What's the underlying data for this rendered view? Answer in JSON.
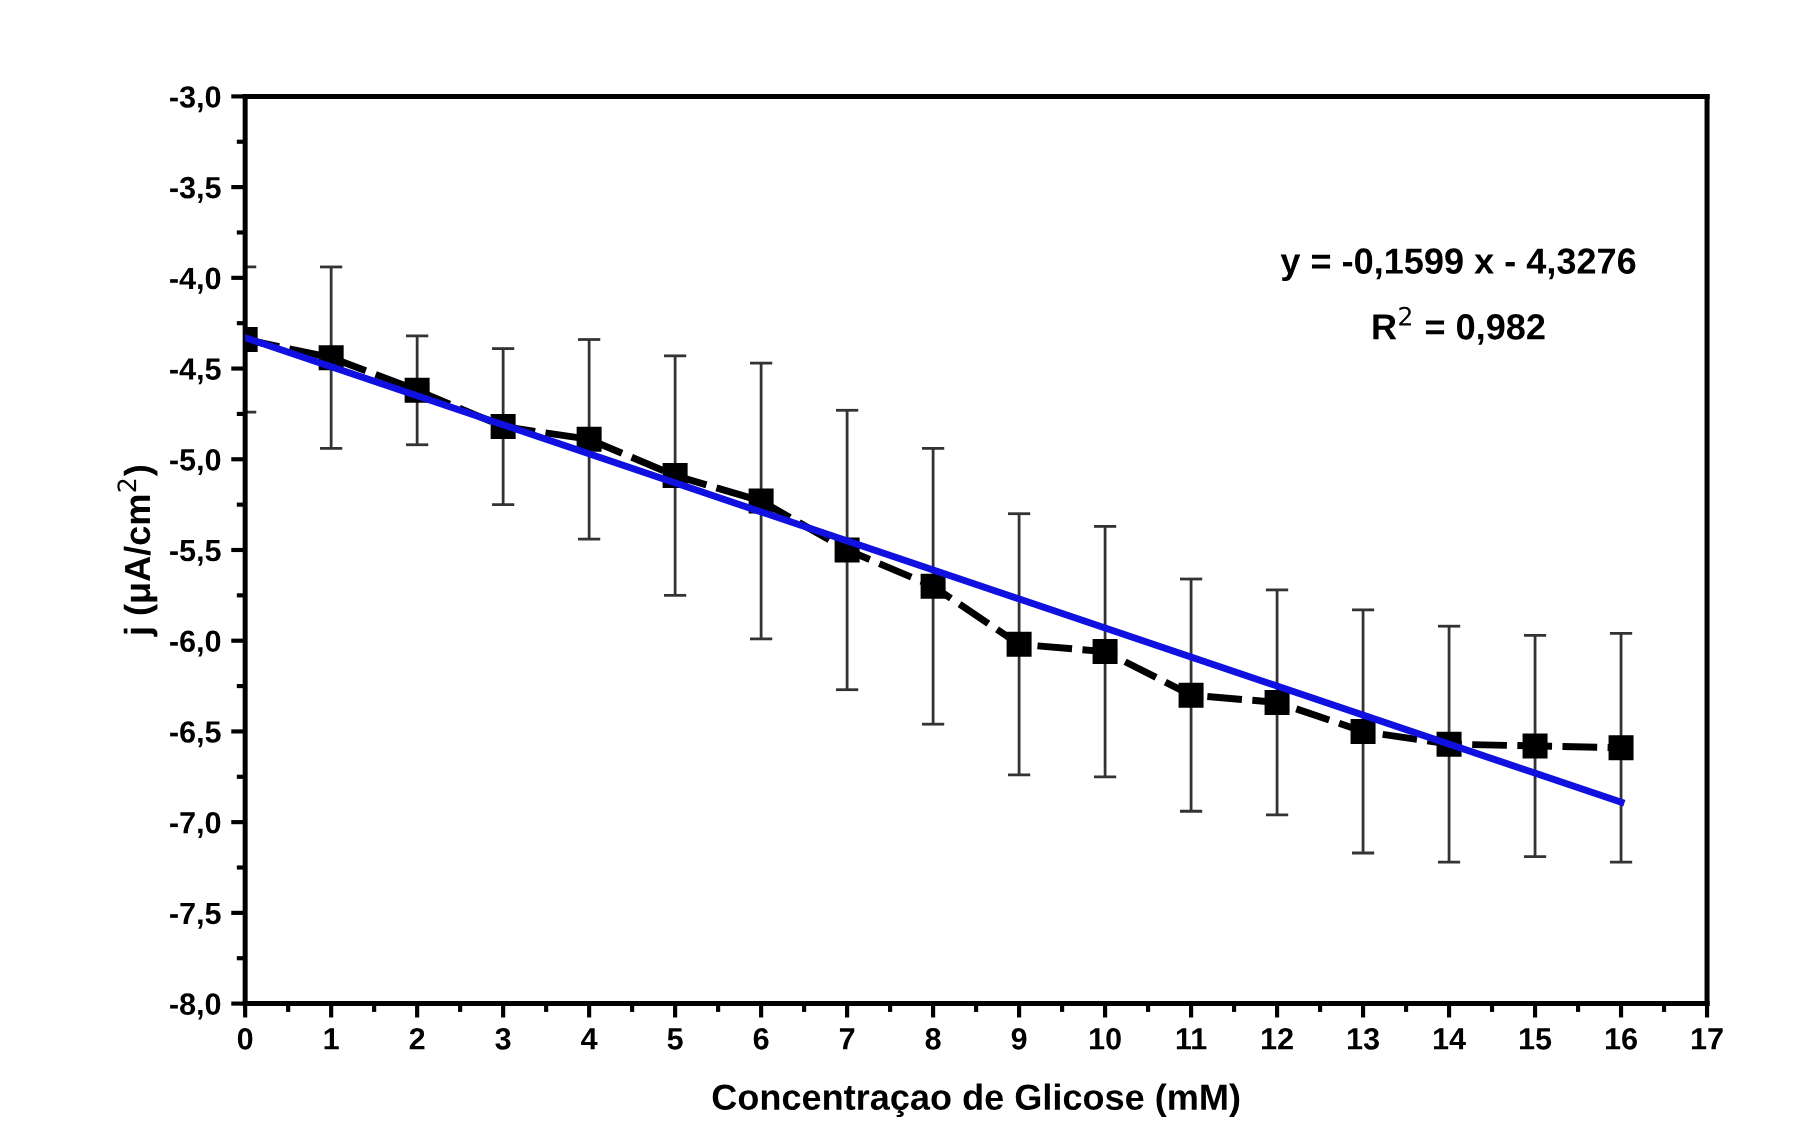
{
  "chart_data": {
    "type": "line",
    "xlabel": "Concentraçao de Glicose (mM)",
    "ylabel": "j (μA/cm$^{2}$)",
    "x": [
      0,
      1,
      2,
      3,
      4,
      5,
      6,
      7,
      8,
      9,
      10,
      11,
      12,
      13,
      14,
      15,
      16
    ],
    "series": [
      {
        "color": "#000000",
        "marker": "square",
        "line_style": "dashed",
        "values": [
          -4.34,
          -4.44,
          -4.62,
          -4.82,
          -4.89,
          -5.09,
          -5.23,
          -5.5,
          -5.7,
          -6.02,
          -6.06,
          -6.3,
          -6.34,
          -6.5,
          -6.57,
          -6.58,
          -6.59
        ],
        "errors": [
          0.4,
          0.5,
          0.3,
          0.43,
          0.55,
          0.66,
          0.76,
          0.77,
          0.76,
          0.72,
          0.69,
          0.64,
          0.62,
          0.67,
          0.65,
          0.61,
          0.63
        ]
      },
      {
        "type": "line",
        "color": "#1010e0",
        "marker": "none",
        "line_style": "solid",
        "x": [
          0,
          16
        ],
        "values": [
          -4.33,
          -6.89
        ]
      }
    ],
    "xlim": [
      0,
      17
    ],
    "xticks": [
      0,
      1,
      2,
      3,
      4,
      5,
      6,
      7,
      8,
      9,
      10,
      11,
      12,
      13,
      14,
      15,
      16,
      17
    ],
    "ylim": [
      -8,
      -3
    ],
    "yticks": [
      {
        "value": -8,
        "label": "-8,0"
      },
      {
        "value": -7.5,
        "label": "-7,5"
      },
      {
        "value": -7,
        "label": "-7,0"
      },
      {
        "value": -6.5,
        "label": "-6,5"
      },
      {
        "value": -6,
        "label": "-6,0"
      },
      {
        "value": -5.5,
        "label": "-5,5"
      },
      {
        "value": -5,
        "label": "-5,0"
      },
      {
        "value": -4.5,
        "label": "-4,5"
      },
      {
        "value": -4,
        "label": "-4,0"
      },
      {
        "value": -3.5,
        "label": "-3,5"
      },
      {
        "value": -3,
        "label": "-3,0"
      }
    ],
    "annotations": [
      "y = -0,1599 x - 4,3276",
      "R$^{2}$ = 0,982"
    ],
    "grid": false
  }
}
